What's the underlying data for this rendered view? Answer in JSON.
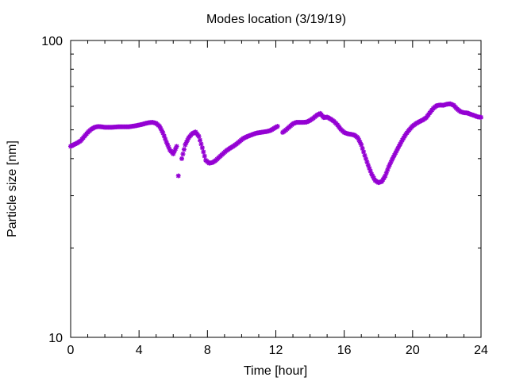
{
  "chart_data": {
    "type": "scatter",
    "title": "Modes location (3/19/19)",
    "xlabel": "Time [hour]",
    "ylabel": "Particle size [nm]",
    "xlim": [
      0,
      24
    ],
    "ylim": [
      10,
      100
    ],
    "yscale": "log",
    "grid": false,
    "legend": "none",
    "x_ticks": [
      "0",
      "4",
      "8",
      "12",
      "16",
      "20",
      "24"
    ],
    "y_ticks": [
      "10",
      "100"
    ],
    "marker_color": "#9400d3",
    "series": [
      {
        "x": [
          0.0,
          0.2,
          0.4,
          0.6,
          0.8,
          1.0,
          1.2,
          1.4,
          1.6,
          1.8,
          2.0,
          2.2,
          2.4,
          2.6,
          2.8,
          3.0,
          3.2,
          3.4,
          3.6,
          3.8,
          4.0,
          4.2,
          4.4,
          4.6,
          4.8,
          5.0,
          5.2,
          5.4,
          5.6,
          5.8,
          6.0,
          6.2,
          6.3,
          6.5,
          6.7,
          6.9,
          7.1,
          7.3,
          7.5,
          7.7,
          7.9,
          8.1,
          8.3,
          8.5,
          8.7,
          8.9,
          9.1,
          9.3,
          9.5,
          9.7,
          9.9,
          10.1,
          10.3,
          10.5,
          10.7,
          10.9,
          11.1,
          11.3,
          11.5,
          11.7,
          11.9,
          12.1,
          12.4,
          12.6,
          12.8,
          13.0,
          13.2,
          13.4,
          13.6,
          13.8,
          14.0,
          14.2,
          14.4,
          14.6,
          14.8,
          15.0,
          15.2,
          15.4,
          15.6,
          15.8,
          16.0,
          16.2,
          16.4,
          16.6,
          16.8,
          17.0,
          17.2,
          17.4,
          17.6,
          17.8,
          18.0,
          18.2,
          18.4,
          18.6,
          18.8,
          19.0,
          19.2,
          19.4,
          19.6,
          19.8,
          20.0,
          20.2,
          20.4,
          20.6,
          20.8,
          21.0,
          21.2,
          21.4,
          21.6,
          21.8,
          22.0,
          22.2,
          22.4,
          22.6,
          22.8,
          23.0,
          23.2,
          23.4,
          23.6,
          23.8,
          24.0
        ],
        "y": [
          44.0,
          44.6,
          45.2,
          46.0,
          47.5,
          49.0,
          50.2,
          51.0,
          51.3,
          51.2,
          51.0,
          51.0,
          51.0,
          51.1,
          51.2,
          51.2,
          51.2,
          51.2,
          51.4,
          51.6,
          51.9,
          52.2,
          52.6,
          52.9,
          53.0,
          52.6,
          51.4,
          48.8,
          45.5,
          42.8,
          41.5,
          44.0,
          35.0,
          40.0,
          44.5,
          47.0,
          48.5,
          49.2,
          47.5,
          43.5,
          39.5,
          38.6,
          38.8,
          39.5,
          40.5,
          41.5,
          42.5,
          43.3,
          44.0,
          44.8,
          45.8,
          46.8,
          47.4,
          47.9,
          48.4,
          48.8,
          49.0,
          49.2,
          49.4,
          49.8,
          50.6,
          51.4,
          49.0,
          50.0,
          51.2,
          52.4,
          53.0,
          53.0,
          53.0,
          53.1,
          53.8,
          54.8,
          56.0,
          56.8,
          55.0,
          55.2,
          54.4,
          53.4,
          52.0,
          50.2,
          49.0,
          48.5,
          48.3,
          48.0,
          47.0,
          44.5,
          41.0,
          38.0,
          35.5,
          33.8,
          33.2,
          33.5,
          35.0,
          37.5,
          39.7,
          41.8,
          44.0,
          46.2,
          48.3,
          50.0,
          51.5,
          52.5,
          53.3,
          54.0,
          55.0,
          57.0,
          59.0,
          60.3,
          60.6,
          60.5,
          61.0,
          61.2,
          60.5,
          58.8,
          57.6,
          57.1,
          57.0,
          56.4,
          55.9,
          55.3,
          55.1
        ]
      }
    ]
  }
}
